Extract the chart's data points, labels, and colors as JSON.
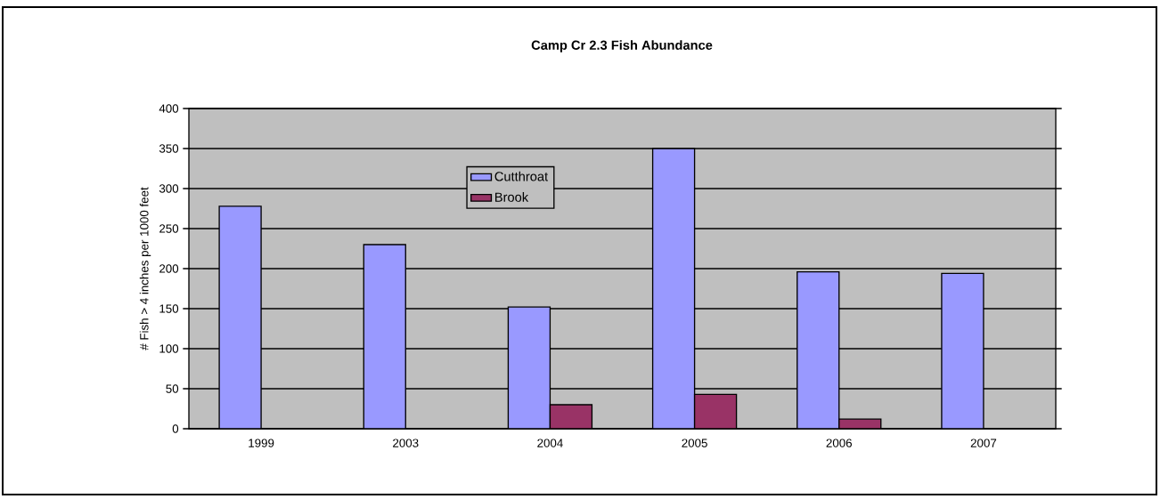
{
  "chart_data": {
    "type": "bar",
    "title": "Camp Cr 2.3 Fish Abundance",
    "ylabel": "# Fish > 4 inches per 1000 feet",
    "categories": [
      "1999",
      "2003",
      "2004",
      "2005",
      "2006",
      "2007"
    ],
    "series": [
      {
        "name": "Cutthroat",
        "color": "#9999ff",
        "values": [
          278,
          230,
          152,
          350,
          196,
          194
        ]
      },
      {
        "name": "Brook",
        "color": "#993366",
        "values": [
          null,
          null,
          30,
          43,
          12,
          null
        ]
      }
    ],
    "ylim": [
      0,
      400
    ],
    "yticks": [
      0,
      50,
      100,
      150,
      200,
      250,
      300,
      350,
      400
    ],
    "grid": "y",
    "legend": "top"
  }
}
